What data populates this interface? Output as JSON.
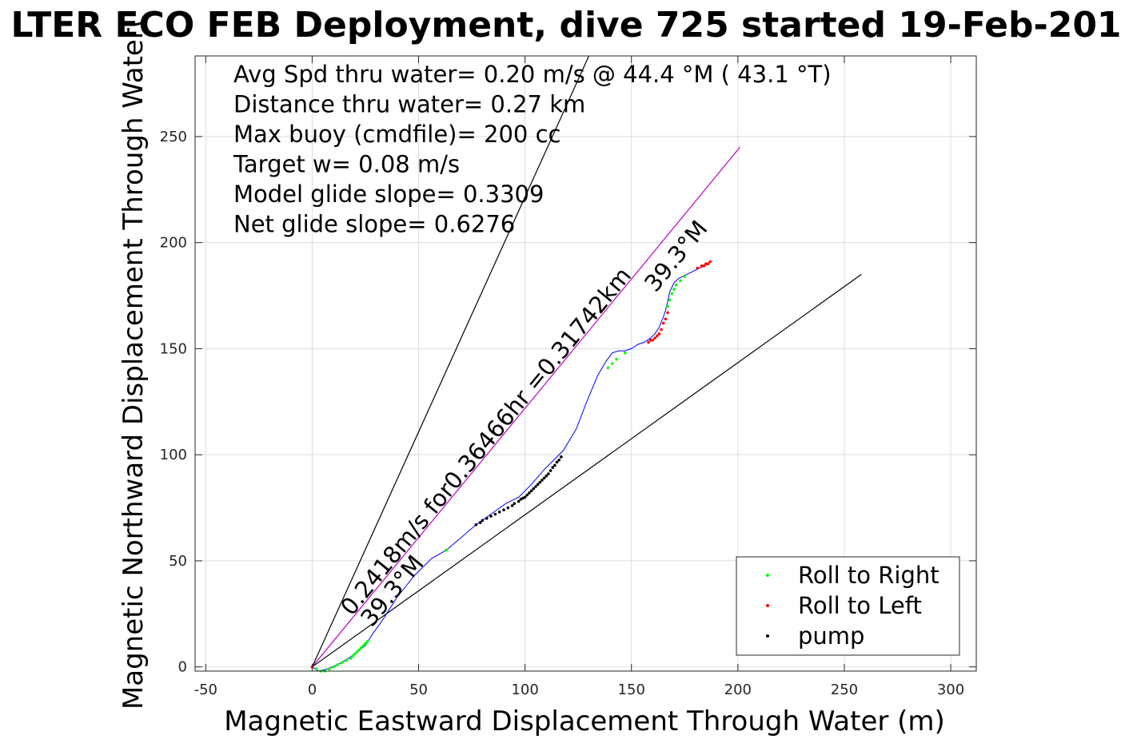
{
  "chart_data": {
    "type": "scatter",
    "title": "LTER ECO FEB Deployment, dive 725 started 19-Feb-201",
    "xlabel": "Magnetic Eastward Displacement Through Water (m)",
    "ylabel": "Magnetic Northward Displacement Through Water(",
    "xlim": [
      -55,
      312
    ],
    "ylim": [
      -2,
      288
    ],
    "x_ticks": [
      -50,
      0,
      50,
      100,
      150,
      200,
      250,
      300
    ],
    "y_ticks": [
      0,
      50,
      100,
      150,
      200,
      250
    ],
    "grid": true,
    "legend_position": "bottom-right",
    "legend": [
      {
        "label": "Roll to Right",
        "color": "#00ff00"
      },
      {
        "label": "Roll to Left",
        "color": "#ff0000"
      },
      {
        "label": "pump",
        "color": "#000000"
      }
    ],
    "annotations": [
      "Avg Spd thru water=  0.20 m/s @  44.4 °M ( 43.1 °T)",
      "Distance thru water=  0.27 km",
      "Max buoy (cmdfile)= 200 cc",
      "Target w= 0.08 m/s",
      "Model glide slope= 0.3309",
      "Net glide slope= 0.6276"
    ],
    "rotated_labels": {
      "main_line": "0.2418m/s for0.36466hr =0.31742km",
      "heading_near_origin": "39.3°M",
      "heading_near_end": "39.3°M"
    },
    "reference_lines": [
      {
        "name": "left-bound",
        "color": "#000000",
        "x": [
          0,
          130
        ],
        "y": [
          0,
          288
        ]
      },
      {
        "name": "heading-line",
        "color": "#c000c0",
        "x": [
          0,
          201
        ],
        "y": [
          0,
          245
        ]
      },
      {
        "name": "right-bound",
        "color": "#000000",
        "x": [
          0,
          258
        ],
        "y": [
          0,
          185
        ]
      }
    ],
    "track": {
      "color": "#0000ff",
      "x": [
        0,
        3,
        7,
        12,
        17,
        21,
        25,
        28,
        33,
        40,
        48,
        56,
        63,
        70,
        77,
        84,
        91,
        97,
        103,
        109,
        114,
        118,
        124,
        129,
        134,
        138,
        141,
        144,
        147,
        150,
        153,
        156,
        159,
        161,
        163,
        165,
        166,
        167,
        168,
        170,
        172,
        174,
        178,
        182,
        186,
        187
      ],
      "y": [
        0,
        -2,
        -1,
        1,
        4,
        7,
        10,
        15,
        22,
        33,
        43,
        51,
        55,
        61,
        67,
        72,
        77,
        80,
        86,
        93,
        98,
        102,
        112,
        125,
        137,
        144,
        148,
        149,
        149,
        150,
        152,
        153,
        155,
        157,
        160,
        165,
        168,
        172,
        177,
        181,
        183,
        184,
        186,
        188,
        190,
        191
      ]
    },
    "series": [
      {
        "name": "Roll to Right",
        "color": "#00ff00",
        "x": [
          2,
          4,
          6,
          8,
          10,
          12,
          14,
          16,
          18,
          19,
          20,
          21,
          22,
          23,
          24,
          25,
          26,
          63,
          139,
          141,
          143,
          147,
          167,
          168,
          169,
          170,
          171,
          173,
          175
        ],
        "y": [
          -1,
          -2,
          -2,
          -1,
          0,
          1,
          2,
          3,
          4,
          5,
          6,
          7,
          8,
          9,
          10,
          11,
          12,
          55,
          141,
          143,
          145,
          148,
          170,
          173,
          176,
          178,
          180,
          182,
          184
        ]
      },
      {
        "name": "Roll to Left",
        "color": "#ff0000",
        "x": [
          0,
          158,
          159,
          160,
          161,
          162,
          163,
          164,
          165,
          166,
          167,
          181,
          183,
          184,
          185,
          186,
          187
        ],
        "y": [
          0,
          153,
          154,
          154,
          155,
          156,
          157,
          159,
          162,
          164,
          167,
          188,
          189,
          189,
          190,
          190,
          191
        ]
      },
      {
        "name": "pump",
        "color": "#000000",
        "x": [
          77,
          79,
          80,
          82,
          84,
          86,
          88,
          90,
          92,
          94,
          95,
          97,
          98,
          99,
          100,
          101,
          102,
          103,
          104,
          105,
          106,
          107,
          108,
          109,
          110,
          111,
          112,
          113,
          114,
          115,
          116,
          117
        ],
        "y": [
          67,
          68,
          69,
          70,
          71,
          72,
          73,
          74,
          75,
          76,
          77,
          78,
          79,
          79.5,
          80,
          81,
          82,
          83,
          84,
          85,
          86,
          87,
          88,
          89,
          90,
          91,
          92.5,
          94,
          95,
          96.5,
          97.5,
          99
        ]
      }
    ]
  }
}
